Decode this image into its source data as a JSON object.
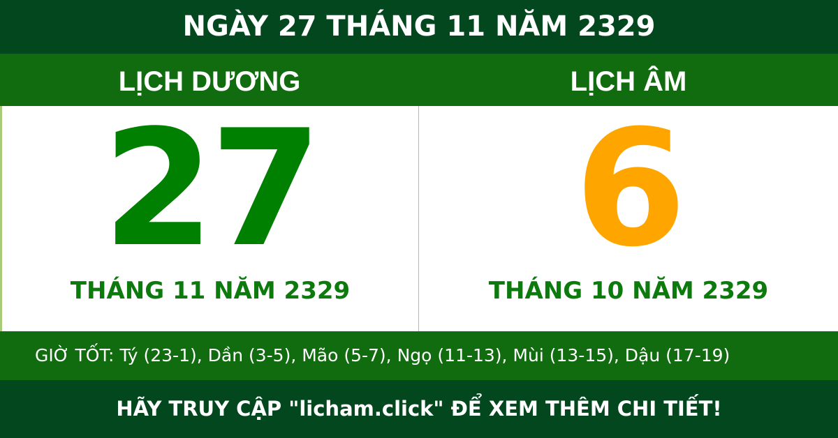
{
  "title": "NGÀY 27 THÁNG 11 NĂM 2329",
  "solar": {
    "heading": "LỊCH DƯƠNG",
    "day": "27",
    "month_year": "THÁNG 11 NĂM 2329",
    "color": "#008000"
  },
  "lunar": {
    "heading": "LỊCH ÂM",
    "day": "6",
    "month_year": "THÁNG 10 NĂM 2329",
    "color": "#ffa500"
  },
  "good_hours": "GIỜ TỐT: Tý (23-1), Dần (3-5), Mão (5-7), Ngọ (11-13), Mùi (13-15), Dậu (17-19)",
  "footer": "HÃY TRUY CẬP \"licham.click\" ĐỂ XEM THÊM CHI TIẾT!",
  "colors": {
    "dark_green": "#03471f",
    "band_green": "#116b0f"
  }
}
